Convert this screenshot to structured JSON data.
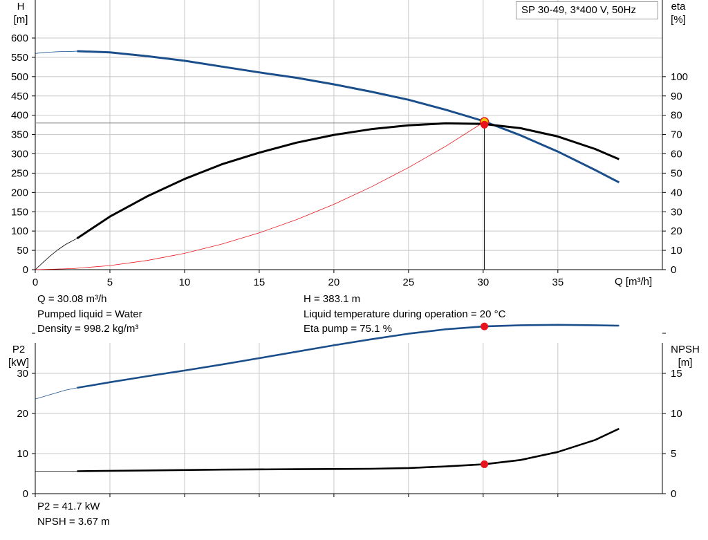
{
  "chart_data": [
    {
      "type": "line",
      "title": "SP 30-49, 3*400 V, 50Hz",
      "xlabel": "Q [m³/h]",
      "ylabel_left": [
        "H",
        "[m]"
      ],
      "ylabel_right": [
        "eta",
        "[%]"
      ],
      "xlim": [
        0,
        42
      ],
      "xticks": [
        0,
        5,
        10,
        15,
        20,
        25,
        30,
        35
      ],
      "ylim_left": [
        0,
        600
      ],
      "yticks_left": [
        0,
        50,
        100,
        150,
        200,
        250,
        300,
        350,
        400,
        450,
        500,
        550,
        600
      ],
      "ylim_right": [
        0,
        120
      ],
      "yticks_right": [
        0,
        10,
        20,
        30,
        40,
        50,
        60,
        70,
        80,
        90,
        100
      ],
      "grid": true,
      "series": [
        {
          "key": "head",
          "axis": "left",
          "color": "#1a4f8b",
          "extrapolated_x": [
            0,
            0.5,
            1,
            1.5,
            2,
            2.5,
            2.8
          ],
          "extrapolated_y": [
            560,
            562,
            563.5,
            564.5,
            565,
            565.5,
            566
          ],
          "x": [
            2.8,
            5,
            7.5,
            10,
            12.5,
            15,
            17.5,
            20,
            22.5,
            25,
            27.5,
            30,
            32.5,
            35,
            37.5,
            39.1
          ],
          "y": [
            566,
            563,
            553,
            541,
            526,
            511,
            497,
            480,
            461,
            440,
            414,
            385,
            348,
            306,
            258,
            226
          ]
        },
        {
          "key": "efficiency",
          "axis": "right",
          "color": "#000000",
          "extrapolated_x": [
            0,
            0.5,
            1,
            1.5,
            2,
            2.5,
            2.8
          ],
          "extrapolated_y": [
            0,
            3.6,
            7.1,
            10.2,
            12.9,
            15.0,
            16.2
          ],
          "x": [
            2.8,
            5,
            7.5,
            10,
            12.5,
            15,
            17.5,
            20,
            22.5,
            25,
            27.5,
            30,
            32.5,
            35,
            37.5,
            39.1
          ],
          "y": [
            16.2,
            27.5,
            38.0,
            47.0,
            54.6,
            60.6,
            65.8,
            69.8,
            72.8,
            74.8,
            75.8,
            75.5,
            73.3,
            69.0,
            62.5,
            57.2
          ]
        },
        {
          "key": "system-curve",
          "axis": "left",
          "color": "#e8141b",
          "x": [
            0,
            2.5,
            5,
            7.5,
            10,
            12.5,
            15,
            17.5,
            20,
            22.5,
            25,
            27.5,
            30.08
          ],
          "y": [
            0,
            2.6,
            10.6,
            23.8,
            42.3,
            66.2,
            95.2,
            129.6,
            169.3,
            214.3,
            264.6,
            320.1,
            383.1
          ]
        }
      ],
      "operating_point": {
        "q": 30.08,
        "h": 383.1,
        "eta": 75.1
      },
      "duty_line": {
        "q": 30.08,
        "h": 380
      }
    },
    {
      "type": "line",
      "xlim": [
        0,
        42
      ],
      "xticks": [
        0,
        5,
        10,
        15,
        20,
        25,
        30,
        35
      ],
      "ylabel_left": [
        "P2",
        "[kW]"
      ],
      "ylabel_right": [
        "NPSH",
        "[m]"
      ],
      "ylim_left": [
        0,
        40
      ],
      "yticks_left": [
        0,
        10,
        20,
        30
      ],
      "ylim_right": [
        0,
        20
      ],
      "yticks_right": [
        0,
        5,
        10,
        15
      ],
      "grid": true,
      "series": [
        {
          "key": "power",
          "axis": "left",
          "color": "#1a4f8b",
          "extrapolated_x": [
            0,
            1,
            2,
            2.8
          ],
          "extrapolated_y": [
            23.6,
            24.7,
            25.8,
            26.4
          ],
          "x": [
            2.8,
            5,
            7.5,
            10,
            12.5,
            15,
            17.5,
            20,
            22.5,
            25,
            27.5,
            30.08,
            32.5,
            35,
            37.5,
            39.1
          ],
          "y": [
            26.4,
            27.8,
            29.3,
            30.7,
            32.2,
            33.8,
            35.4,
            37.0,
            38.5,
            39.9,
            41.0,
            41.7,
            42.0,
            42.1,
            42.0,
            41.9
          ]
        },
        {
          "key": "npsh",
          "axis": "right",
          "color": "#000000",
          "extrapolated_x": [
            0,
            1.5,
            2.8
          ],
          "extrapolated_y": [
            2.8,
            2.8,
            2.8
          ],
          "x": [
            2.8,
            7.5,
            12.5,
            17.5,
            22.5,
            25,
            27.5,
            30.08,
            32.5,
            35,
            37.5,
            39.1
          ],
          "y": [
            2.8,
            2.9,
            3.0,
            3.05,
            3.1,
            3.2,
            3.4,
            3.67,
            4.2,
            5.2,
            6.7,
            8.1
          ]
        }
      ],
      "operating_point": {
        "q": 30.08,
        "p2": 41.7,
        "npsh": 3.67
      }
    }
  ],
  "readouts": {
    "q": "Q = 30.08 m³/h",
    "liquid": "Pumped liquid = Water",
    "density": "Density = 998.2 kg/m³",
    "h": "H = 383.1 m",
    "temperature": "Liquid temperature during operation = 20 °C",
    "eta": "Eta pump = 75.1 %",
    "p2": "P2 = 41.7 kW",
    "npsh": "NPSH = 3.67 m"
  },
  "colors": {
    "grid": "#c8c8c8",
    "marker_red": "#e8141b",
    "marker_yellow": "#f2c400"
  }
}
